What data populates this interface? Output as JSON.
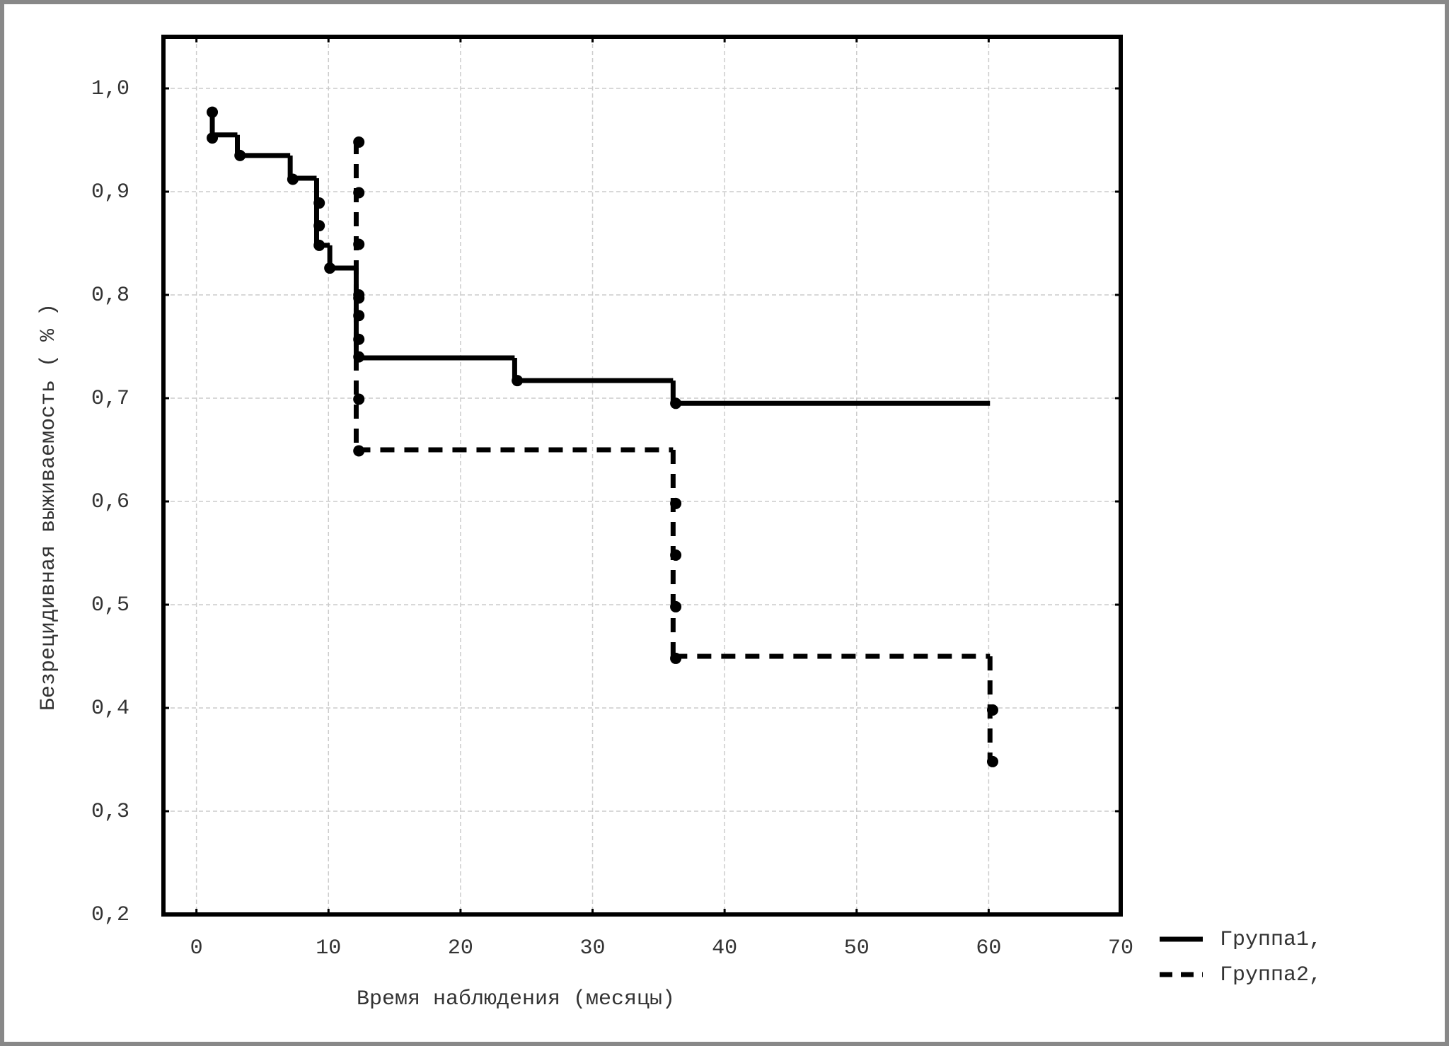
{
  "chart_data": {
    "type": "step",
    "x_label": "Время наблюдения (месяцы)",
    "y_label": "Безрецидивная выживаемость ( % )",
    "xlim": [
      -2.5,
      70
    ],
    "ylim": [
      0.2,
      1.05
    ],
    "xticks": [
      0,
      10,
      20,
      30,
      40,
      50,
      60,
      70
    ],
    "yticks": [
      {
        "value": 0.2,
        "label": "0,2"
      },
      {
        "value": 0.3,
        "label": "0,3"
      },
      {
        "value": 0.4,
        "label": "0,4"
      },
      {
        "value": 0.5,
        "label": "0,5"
      },
      {
        "value": 0.6,
        "label": "0,6"
      },
      {
        "value": 0.7,
        "label": "0,7"
      },
      {
        "value": 0.8,
        "label": "0,8"
      },
      {
        "value": 0.9,
        "label": "0,9"
      },
      {
        "value": 1.0,
        "label": "1,0"
      }
    ],
    "grid": true,
    "legend": "outside-bottom-right",
    "series": [
      {
        "name": "Группа1,",
        "color": "#000000",
        "dash": "solid",
        "x": [
          1.2,
          1.2,
          3.1,
          7.1,
          9.1,
          10.1,
          12.1,
          24.1,
          36.1,
          60.1
        ],
        "values": [
          0.977,
          0.955,
          0.935,
          0.913,
          0.848,
          0.826,
          0.739,
          0.717,
          0.695,
          0.695
        ],
        "markers_x": [
          1.2,
          1.2,
          3.3,
          7.3,
          9.3,
          9.3,
          9.3,
          10.1,
          12.3,
          12.3,
          12.3,
          12.3,
          24.3,
          36.3
        ],
        "markers_y": [
          0.977,
          0.952,
          0.935,
          0.912,
          0.889,
          0.867,
          0.848,
          0.826,
          0.8,
          0.78,
          0.757,
          0.74,
          0.717,
          0.695
        ]
      },
      {
        "name": "Группа2,",
        "color": "#000000",
        "dash": "dashed",
        "x": [
          12.1,
          12.1,
          36.1,
          60.1
        ],
        "values": [
          0.95,
          0.65,
          0.45,
          0.35
        ],
        "markers_x": [
          12.3,
          12.3,
          12.3,
          12.3,
          12.3,
          12.3,
          36.3,
          36.3,
          36.3,
          36.3,
          60.3,
          60.3
        ],
        "markers_y": [
          0.948,
          0.899,
          0.849,
          0.797,
          0.699,
          0.649,
          0.598,
          0.548,
          0.498,
          0.448,
          0.398,
          0.348
        ]
      }
    ]
  }
}
